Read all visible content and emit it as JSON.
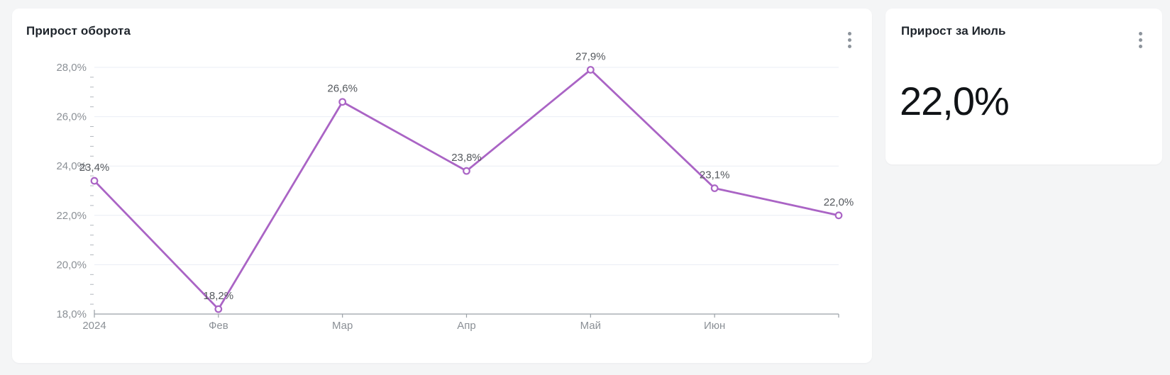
{
  "page": {
    "background_color": "#f4f5f6",
    "card_color": "#ffffff"
  },
  "cards": {
    "turnover": {
      "title": "Прирост оборота",
      "menu_icon": "kebab-vertical-icon"
    },
    "july": {
      "title": "Прирост за Июль",
      "value": "22,0%",
      "menu_icon": "kebab-vertical-icon"
    }
  },
  "chart_data": {
    "type": "line",
    "title": "Прирост оборота",
    "categories": [
      "2024",
      "Фев",
      "Мар",
      "Апр",
      "Май",
      "Июн",
      ""
    ],
    "values": [
      23.4,
      18.2,
      26.6,
      23.8,
      27.9,
      23.1,
      22.0
    ],
    "point_labels": [
      "23,4%",
      "18,2%",
      "26,6%",
      "23,8%",
      "27,9%",
      "23,1%",
      "22,0%"
    ],
    "y_tick_labels": [
      "28,0%",
      "26,0%",
      "24,0%",
      "22,0%",
      "20,0%",
      "18,0%"
    ],
    "y_tick_values": [
      28,
      26,
      24,
      22,
      20,
      18
    ],
    "ylim": [
      18,
      28
    ],
    "y_minor_per_major": 4,
    "grid": "horizontal",
    "legend": "none",
    "line_color": "#aa64c5",
    "marker": "open-circle",
    "colors": {
      "grid": "#e9edf4",
      "axis": "#9aa0a6",
      "minor_tick": "#b3b8be",
      "axis_label": "#8b9096",
      "data_label": "#54585d"
    }
  }
}
